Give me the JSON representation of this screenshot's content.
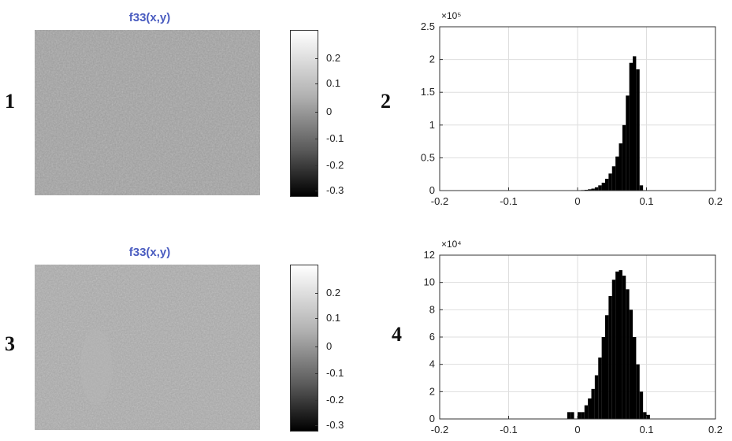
{
  "panels": [
    {
      "id": "1",
      "label": "1",
      "title": "f33(x,y)",
      "colorbar_ticks": [
        "0.2",
        "0.1",
        "0",
        "-0.1",
        "-0.2",
        "-0.3"
      ]
    },
    {
      "id": "2",
      "label": "2"
    },
    {
      "id": "3",
      "label": "3",
      "title": "f33(x,y)",
      "colorbar_ticks": [
        "0.2",
        "0.1",
        "0",
        "-0.1",
        "-0.2",
        "-0.3"
      ]
    },
    {
      "id": "4",
      "label": "4"
    }
  ],
  "chart_data": [
    {
      "type": "bar",
      "panel": "2",
      "title": "",
      "xlabel": "",
      "ylabel": "",
      "y_exponent_label": "×10⁵",
      "xlim": [
        -0.2,
        0.2
      ],
      "ylim": [
        0,
        2.5
      ],
      "xticks": [
        "-0.2",
        "-0.1",
        "0",
        "0.1",
        "0.2"
      ],
      "yticks": [
        "0",
        "0.5",
        "1",
        "1.5",
        "2",
        "2.5"
      ],
      "ytick_values": [
        0,
        0.5,
        1,
        1.5,
        2,
        2.5
      ],
      "grid": true,
      "bin_width": 0.005,
      "x": [
        0.0,
        0.005,
        0.01,
        0.015,
        0.02,
        0.025,
        0.03,
        0.035,
        0.04,
        0.045,
        0.05,
        0.055,
        0.06,
        0.065,
        0.07,
        0.075,
        0.08,
        0.085,
        0.09
      ],
      "values": [
        0.005,
        0.008,
        0.012,
        0.02,
        0.03,
        0.05,
        0.08,
        0.12,
        0.18,
        0.26,
        0.37,
        0.52,
        0.72,
        1.0,
        1.45,
        1.95,
        2.05,
        1.85,
        0.08
      ]
    },
    {
      "type": "bar",
      "panel": "4",
      "title": "",
      "xlabel": "",
      "ylabel": "",
      "y_exponent_label": "×10⁴",
      "xlim": [
        -0.2,
        0.2
      ],
      "ylim": [
        0,
        12
      ],
      "xticks": [
        "-0.2",
        "-0.1",
        "0",
        "0.1",
        "0.2"
      ],
      "yticks": [
        "0",
        "2",
        "4",
        "6",
        "8",
        "10",
        "12"
      ],
      "ytick_values": [
        0,
        2,
        4,
        6,
        8,
        10,
        12
      ],
      "grid": true,
      "bin_width": 0.005,
      "x": [
        -0.015,
        -0.01,
        -0.005,
        0.0,
        0.005,
        0.01,
        0.015,
        0.02,
        0.025,
        0.03,
        0.035,
        0.04,
        0.045,
        0.05,
        0.055,
        0.06,
        0.065,
        0.07,
        0.075,
        0.08,
        0.085,
        0.09,
        0.095,
        0.1
      ],
      "values": [
        0.5,
        0.5,
        0.0,
        0.5,
        0.5,
        1.0,
        1.5,
        2.2,
        3.2,
        4.5,
        6.0,
        7.6,
        9.0,
        10.2,
        10.8,
        10.9,
        10.5,
        9.5,
        8.0,
        6.0,
        4.0,
        2.0,
        0.5,
        0.3
      ]
    }
  ]
}
